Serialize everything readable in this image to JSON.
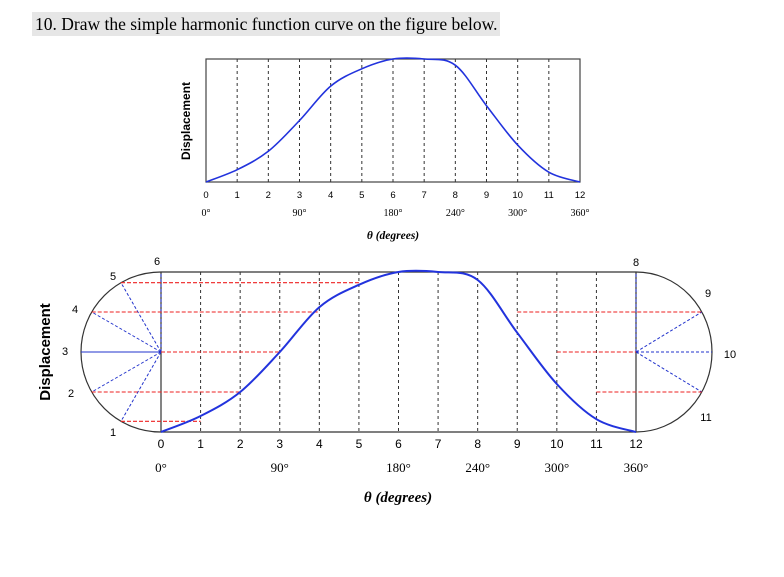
{
  "question": {
    "number": "10.",
    "text": "Draw the simple harmonic function curve on the figure below."
  },
  "colors": {
    "curve": "#2233dd",
    "red_dash": "#ee2222",
    "blue_dash": "#2233cc",
    "grid_dash": "#333333",
    "frame": "#444444",
    "title_highlight": "#e6e6e6"
  },
  "top_panel": {
    "ylabel": "Displacement",
    "xlabel": "θ (degrees)",
    "tick_numbers": [
      "0",
      "1",
      "2",
      "3",
      "4",
      "5",
      "6",
      "7",
      "8",
      "9",
      "10",
      "11",
      "12"
    ],
    "degree_labels": [
      {
        "index": 0,
        "text": "0°"
      },
      {
        "index": 3,
        "text": "90°"
      },
      {
        "index": 6,
        "text": "180°"
      },
      {
        "index": 8,
        "text": "240°"
      },
      {
        "index": 10,
        "text": "300°"
      },
      {
        "index": 12,
        "text": "360°"
      }
    ]
  },
  "bottom_panel": {
    "ylabel": "Displacement",
    "xlabel": "θ (degrees)",
    "tick_numbers": [
      "0",
      "1",
      "2",
      "3",
      "4",
      "5",
      "6",
      "7",
      "8",
      "9",
      "10",
      "11",
      "12"
    ],
    "degree_labels": [
      {
        "index": 0,
        "text": "0°"
      },
      {
        "index": 3,
        "text": "90°"
      },
      {
        "index": 6,
        "text": "180°"
      },
      {
        "index": 8,
        "text": "240°"
      },
      {
        "index": 10,
        "text": "300°"
      },
      {
        "index": 12,
        "text": "360°"
      }
    ],
    "left_circle_labels": [
      "1",
      "2",
      "3",
      "4",
      "5",
      "6"
    ],
    "right_circle_labels": [
      "8",
      "9",
      "10",
      "11"
    ]
  },
  "curve_profile": [
    0,
    0.1,
    0.25,
    0.5,
    0.78,
    0.92,
    1.0,
    1.0,
    0.95,
    0.62,
    0.3,
    0.08,
    0
  ]
}
